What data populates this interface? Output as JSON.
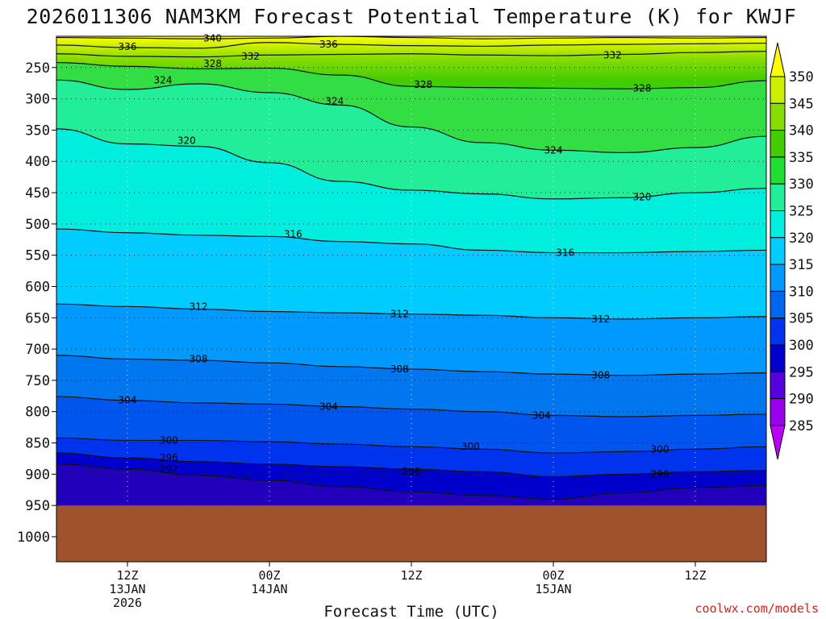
{
  "title": "2026011306 NAM3KM Forecast Potential Temperature (K) for KWJF",
  "credit": "coolwx.com/models",
  "chart_data": {
    "type": "heatmap",
    "title": "2026011306 NAM3KM Forecast Potential Temperature (K) for KWJF",
    "xlabel": "Forecast Time (UTC)",
    "ylabel": "",
    "y_ticks": [
      "250",
      "300",
      "350",
      "400",
      "450",
      "500",
      "550",
      "600",
      "650",
      "700",
      "750",
      "800",
      "850",
      "900",
      "950",
      "1000"
    ],
    "x_ticks": [
      {
        "lines": [
          "12Z",
          "13JAN",
          "2026"
        ],
        "hour": 6
      },
      {
        "lines": [
          "00Z",
          "14JAN"
        ],
        "hour": 18
      },
      {
        "lines": [
          "12Z"
        ],
        "hour": 30
      },
      {
        "lines": [
          "00Z",
          "15JAN"
        ],
        "hour": 42
      },
      {
        "lines": [
          "12Z"
        ],
        "hour": 54
      }
    ],
    "x_range_hours": [
      0,
      60
    ],
    "y_range_hpa": [
      200,
      1040
    ],
    "ground_level_hpa": 950,
    "colorbar": {
      "labels": [
        "350",
        "345",
        "340",
        "335",
        "330",
        "325",
        "320",
        "315",
        "310",
        "305",
        "300",
        "295",
        "290",
        "285"
      ],
      "colors": [
        "#ffff00",
        "#ccee00",
        "#88dd00",
        "#44cc00",
        "#22dd33",
        "#22ee99",
        "#00eedd",
        "#00ccff",
        "#0099ff",
        "#0066ee",
        "#0033ee",
        "#0000cc",
        "#5500dd",
        "#9900ee",
        "#bb00ff"
      ]
    },
    "contours": [
      {
        "label": "340",
        "p": [
          202,
          203,
          204,
          203,
          200,
          202,
          204,
          203,
          202,
          203,
          202
        ]
      },
      {
        "label": "336",
        "p": [
          214,
          218,
          219,
          210,
          213,
          215,
          216,
          214,
          213,
          212,
          211
        ]
      },
      {
        "label": "332",
        "p": [
          228,
          232,
          233,
          230,
          229,
          228,
          230,
          231,
          229,
          226,
          224
        ]
      },
      {
        "label": "328",
        "p": [
          242,
          248,
          252,
          251,
          262,
          280,
          282,
          283,
          284,
          282,
          271
        ]
      },
      {
        "label": "324",
        "p": [
          270,
          285,
          276,
          290,
          310,
          345,
          370,
          382,
          386,
          378,
          360
        ]
      },
      {
        "label": "320",
        "p": [
          348,
          372,
          376,
          402,
          432,
          446,
          452,
          460,
          458,
          450,
          443
        ]
      },
      {
        "label": "316",
        "p": [
          508,
          514,
          518,
          520,
          528,
          532,
          542,
          546,
          546,
          544,
          542
        ]
      },
      {
        "label": "312",
        "p": [
          628,
          632,
          636,
          640,
          642,
          644,
          646,
          650,
          652,
          650,
          648
        ]
      },
      {
        "label": "308",
        "p": [
          710,
          716,
          718,
          722,
          728,
          732,
          736,
          740,
          742,
          740,
          738
        ]
      },
      {
        "label": "304",
        "p": [
          776,
          782,
          786,
          788,
          792,
          796,
          800,
          806,
          808,
          806,
          804
        ]
      },
      {
        "label": "300",
        "p": [
          842,
          846,
          846,
          848,
          852,
          856,
          860,
          866,
          864,
          860,
          856
        ]
      },
      {
        "label": "296",
        "p": [
          866,
          874,
          880,
          884,
          888,
          892,
          896,
          904,
          900,
          896,
          894
        ]
      },
      {
        "label": "292",
        "p": [
          884,
          892,
          902,
          910,
          920,
          928,
          934,
          940,
          930,
          922,
          918
        ]
      }
    ],
    "contour_labels": [
      {
        "text": "340",
        "hour": 13.2,
        "p": 203
      },
      {
        "text": "336",
        "hour": 6.0,
        "p": 217
      },
      {
        "text": "336",
        "hour": 23.0,
        "p": 213
      },
      {
        "text": "332",
        "hour": 16.4,
        "p": 232
      },
      {
        "text": "332",
        "hour": 47.0,
        "p": 230
      },
      {
        "text": "328",
        "hour": 13.2,
        "p": 244
      },
      {
        "text": "328",
        "hour": 31.0,
        "p": 277
      },
      {
        "text": "328",
        "hour": 49.5,
        "p": 283
      },
      {
        "text": "324",
        "hour": 9.0,
        "p": 270
      },
      {
        "text": "324",
        "hour": 23.5,
        "p": 304
      },
      {
        "text": "324",
        "hour": 42.0,
        "p": 382
      },
      {
        "text": "320",
        "hour": 11.0,
        "p": 367
      },
      {
        "text": "320",
        "hour": 49.5,
        "p": 457
      },
      {
        "text": "316",
        "hour": 20.0,
        "p": 516
      },
      {
        "text": "316",
        "hour": 43.0,
        "p": 546
      },
      {
        "text": "312",
        "hour": 12.0,
        "p": 632
      },
      {
        "text": "312",
        "hour": 29.0,
        "p": 644
      },
      {
        "text": "312",
        "hour": 46.0,
        "p": 652
      },
      {
        "text": "308",
        "hour": 12.0,
        "p": 716
      },
      {
        "text": "308",
        "hour": 29.0,
        "p": 732
      },
      {
        "text": "308",
        "hour": 46.0,
        "p": 742
      },
      {
        "text": "304",
        "hour": 6.0,
        "p": 782
      },
      {
        "text": "304",
        "hour": 23.0,
        "p": 792
      },
      {
        "text": "304",
        "hour": 41.0,
        "p": 806
      },
      {
        "text": "300",
        "hour": 9.5,
        "p": 846
      },
      {
        "text": "300",
        "hour": 35.0,
        "p": 856
      },
      {
        "text": "300",
        "hour": 51.0,
        "p": 860
      },
      {
        "text": "296",
        "hour": 9.5,
        "p": 874
      },
      {
        "text": "296",
        "hour": 30.0,
        "p": 896
      },
      {
        "text": "296",
        "hour": 51.0,
        "p": 900
      },
      {
        "text": "292",
        "hour": 9.5,
        "p": 892
      }
    ]
  }
}
